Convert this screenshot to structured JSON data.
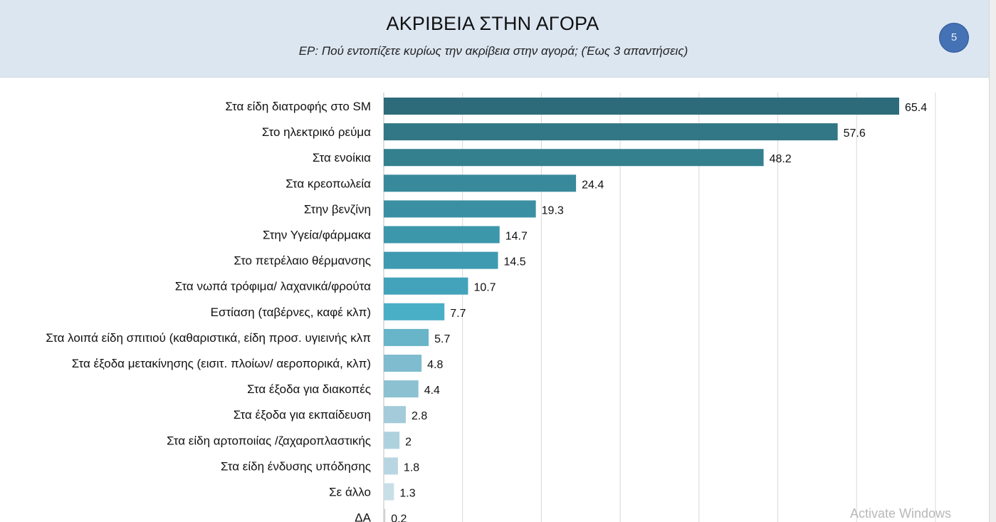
{
  "header": {
    "title": "ΑΚΡΙΒΕΙΑ ΣΤΗΝ ΑΓΟΡΑ",
    "subtitle": "ΕΡ: Πού εντοπίζετε κυρίως την ακρίβεια στην αγορά; (Έως 3 απαντήσεις)",
    "page_number": "5"
  },
  "watermark": "Activate Windows",
  "colors": {
    "header_bg": "#dce6f1",
    "badge": "#4472b4",
    "gridline": "#d9d9d9"
  },
  "chart_data": {
    "type": "bar",
    "orientation": "horizontal",
    "title": "ΑΚΡΙΒΕΙΑ ΣΤΗΝ ΑΓΟΡΑ",
    "subtitle": "ΕΡ: Πού εντοπίζετε κυρίως την ακρίβεια στην αγορά; (Έως 3 απαντήσεις)",
    "xlabel": "",
    "ylabel": "",
    "xlim": [
      0,
      70
    ],
    "grid": true,
    "grid_step": 10,
    "categories": [
      "Στα είδη διατροφής στο SM",
      "Στο ηλεκτρικό ρεύμα",
      "Στα ενοίκια",
      "Στα κρεοπωλεία",
      "Στην βενζίνη",
      "Στην Υγεία/φάρμακα",
      "Στο πετρέλαιο θέρμανσης",
      "Στα νωπά τρόφιμα/ λαχανικά/φρούτα",
      "Εστίαση (ταβέρνες, καφέ κλπ)",
      "Στα λοιπά είδη σπιτιού (καθαριστικά, είδη προσ. υγιεινής κλπ",
      "Στα έξοδα μετακίνησης (εισιτ. πλοίων/ αεροπορικά, κλπ)",
      "Στα έξοδα για διακοπές",
      "Στα έξοδα για εκπαίδευση",
      "Στα είδη αρτοποιίας /ζαχαροπλαστικής",
      "Στα είδη ένδυσης υπόδησης",
      "Σε άλλο",
      "ΔΑ"
    ],
    "values": [
      65.4,
      57.6,
      48.2,
      24.4,
      19.3,
      14.7,
      14.5,
      10.7,
      7.7,
      5.7,
      4.8,
      4.4,
      2.8,
      2,
      1.8,
      1.3,
      0.2
    ],
    "value_labels": [
      "65.4",
      "57.6",
      "48.2",
      "24.4",
      "19.3",
      "14.7",
      "14.5",
      "10.7",
      "7.7",
      "5.7",
      "4.8",
      "4.4",
      "2.8",
      "2",
      "1.8",
      "1.3",
      "0.2"
    ],
    "bar_colors": [
      "#2e6b7a",
      "#327785",
      "#35808f",
      "#388a9b",
      "#3a90a2",
      "#3c97ab",
      "#3e9ab0",
      "#43a3ba",
      "#49afc7",
      "#68b4c9",
      "#7fbccf",
      "#8cc1d2",
      "#a3cbd9",
      "#aed1de",
      "#b8d6e2",
      "#c9dfe8",
      "#d0d0d0"
    ]
  }
}
